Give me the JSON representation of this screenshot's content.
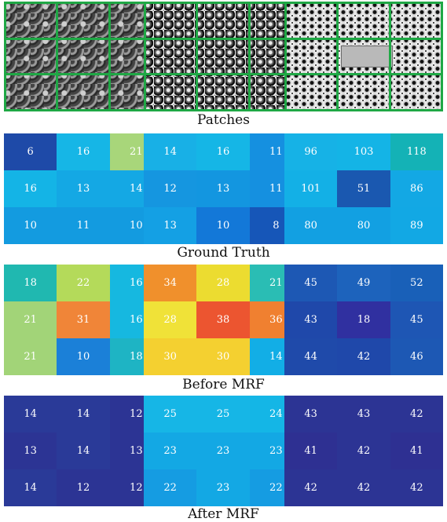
{
  "sections": {
    "patches": "Patches",
    "ground_truth": "Ground Truth",
    "before_mrf": "Before MRF",
    "after_mrf": "After MRF"
  },
  "ground_truth": [
    [
      [
        "6",
        "16",
        "21"
      ],
      [
        "16",
        "13",
        "14"
      ],
      [
        "10",
        "11",
        "10"
      ]
    ],
    [
      [
        "14",
        "16",
        "11"
      ],
      [
        "12",
        "13",
        "11"
      ],
      [
        "13",
        "10",
        "8"
      ]
    ],
    [
      [
        "96",
        "103",
        "118"
      ],
      [
        "101",
        "51",
        "86"
      ],
      [
        "80",
        "80",
        "89"
      ]
    ]
  ],
  "before_mrf": [
    [
      [
        "18",
        "22",
        "16"
      ],
      [
        "21",
        "31",
        "16"
      ],
      [
        "21",
        "10",
        "18"
      ]
    ],
    [
      [
        "34",
        "28",
        "21"
      ],
      [
        "28",
        "38",
        "36"
      ],
      [
        "30",
        "30",
        "14"
      ]
    ],
    [
      [
        "45",
        "49",
        "52"
      ],
      [
        "43",
        "18",
        "45"
      ],
      [
        "44",
        "42",
        "46"
      ]
    ]
  ],
  "after_mrf": [
    [
      [
        "14",
        "14",
        "12"
      ],
      [
        "13",
        "14",
        "13"
      ],
      [
        "14",
        "12",
        "12"
      ]
    ],
    [
      [
        "25",
        "25",
        "24"
      ],
      [
        "23",
        "23",
        "23"
      ],
      [
        "22",
        "23",
        "22"
      ]
    ],
    [
      [
        "43",
        "43",
        "42"
      ],
      [
        "41",
        "42",
        "41"
      ],
      [
        "42",
        "42",
        "42"
      ]
    ]
  ],
  "colors": {
    "ground_truth": [
      [
        [
          "#1e4aa8",
          "#16b6e6",
          "#a8d67a"
        ],
        [
          "#14b4e6",
          "#14a8e4",
          "#14a8e4"
        ],
        [
          "#139be0",
          "#139be0",
          "#139be0"
        ]
      ],
      [
        [
          "#18b0e6",
          "#15b6e6",
          "#1590e0"
        ],
        [
          "#1596e0",
          "#1396e0",
          "#1590e0"
        ],
        [
          "#14a0e4",
          "#1378d8",
          "#1656b8"
        ]
      ],
      [
        [
          "#16b2e6",
          "#14b4e6",
          "#14b2b6"
        ],
        [
          "#13b0e6",
          "#1a58b0",
          "#13a8e4"
        ],
        [
          "#12a0e2",
          "#12a0e2",
          "#12a8e4"
        ]
      ]
    ],
    "before_mrf": [
      [
        [
          "#20b8b0",
          "#b4da5a",
          "#16b8e0"
        ],
        [
          "#a2d478",
          "#f08538",
          "#16b8e0"
        ],
        [
          "#a2d478",
          "#1b80d8",
          "#1eb4c4"
        ]
      ],
      [
        [
          "#f0902c",
          "#ecdc30",
          "#2abdb4"
        ],
        [
          "#f0e238",
          "#ec5530",
          "#f08030"
        ],
        [
          "#f4d030",
          "#f4d030",
          "#12aee6"
        ]
      ],
      [
        [
          "#1d58b4",
          "#1d63bc",
          "#1960b8"
        ],
        [
          "#1f48aa",
          "#3030a0",
          "#1e56b4"
        ],
        [
          "#1f4aaa",
          "#1f48aa",
          "#1d58b4"
        ]
      ]
    ],
    "after_mrf": [
      [
        [
          "#2a3a98",
          "#2a3a98",
          "#2c3494"
        ],
        [
          "#2c3494",
          "#2a3a98",
          "#2c3494"
        ],
        [
          "#2a3a98",
          "#2c3494",
          "#2c3494"
        ]
      ],
      [
        [
          "#16b6e6",
          "#16b6e6",
          "#14b6e6"
        ],
        [
          "#13a8e4",
          "#13a8e4",
          "#13a8e4"
        ],
        [
          "#159ce2",
          "#13a8e4",
          "#159ce2"
        ]
      ],
      [
        [
          "#2c3494",
          "#2c3494",
          "#2c3494"
        ],
        [
          "#2e3092",
          "#2c3494",
          "#2e3092"
        ],
        [
          "#2c3494",
          "#2c3494",
          "#2c3494"
        ]
      ]
    ]
  },
  "grid_line_color": "#1fa845"
}
